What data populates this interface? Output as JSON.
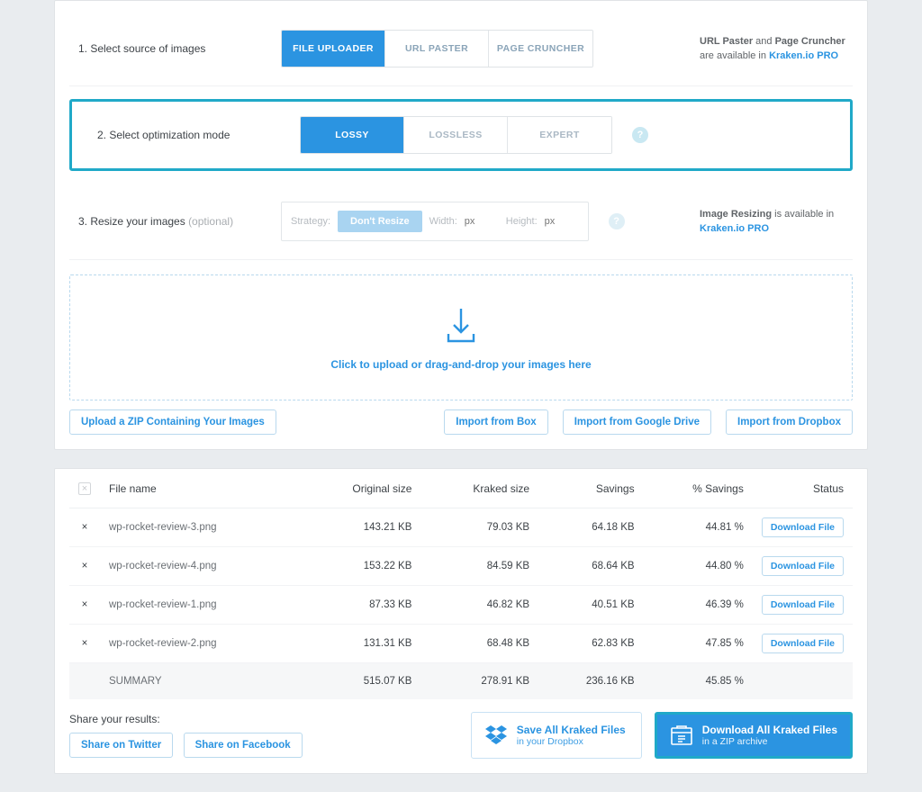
{
  "section1": {
    "label": "1. Select source of images",
    "tabs": [
      {
        "label": "FILE UPLOADER",
        "active": true
      },
      {
        "label": "URL PASTER",
        "active": false
      },
      {
        "label": "PAGE CRUNCHER",
        "active": false
      }
    ],
    "aside_prefix": "URL Paster",
    "aside_and": " and ",
    "aside_pc": "Page Cruncher",
    "aside_line2a": "are available in ",
    "aside_link": "Kraken.io PRO"
  },
  "section2": {
    "label": "2. Select optimization mode",
    "tabs": [
      {
        "label": "LOSSY",
        "active": true
      },
      {
        "label": "LOSSLESS",
        "active": false
      },
      {
        "label": "EXPERT",
        "active": false
      }
    ]
  },
  "section3": {
    "label_main": "3. Resize your images ",
    "label_optional": "(optional)",
    "strategy_label": "Strategy:",
    "strategy_value": "Don't Resize",
    "width_label": "Width:",
    "width_placeholder": "px",
    "height_label": "Height:",
    "height_placeholder": "px",
    "aside_bold": "Image Resizing",
    "aside_text": " is available in",
    "aside_link": "Kraken.io PRO"
  },
  "dropzone_text": "Click to upload or drag-and-drop your images here",
  "buttons": {
    "upload_zip": "Upload a ZIP Containing Your Images",
    "import_box": "Import from Box",
    "import_gdrive": "Import from Google Drive",
    "import_dropbox": "Import from Dropbox"
  },
  "table": {
    "headers": {
      "fname": "File name",
      "orig": "Original size",
      "kraked": "Kraked size",
      "savings": "Savings",
      "pct": "% Savings",
      "status": "Status"
    },
    "download_label": "Download File",
    "rows": [
      {
        "fname": "wp-rocket-review-3.png",
        "orig": "143.21 KB",
        "kraked": "79.03 KB",
        "savings": "64.18 KB",
        "pct": "44.81 %"
      },
      {
        "fname": "wp-rocket-review-4.png",
        "orig": "153.22 KB",
        "kraked": "84.59 KB",
        "savings": "68.64 KB",
        "pct": "44.80 %"
      },
      {
        "fname": "wp-rocket-review-1.png",
        "orig": "87.33 KB",
        "kraked": "46.82 KB",
        "savings": "40.51 KB",
        "pct": "46.39 %"
      },
      {
        "fname": "wp-rocket-review-2.png",
        "orig": "131.31 KB",
        "kraked": "68.48 KB",
        "savings": "62.83 KB",
        "pct": "47.85 %"
      }
    ],
    "summary": {
      "label": "SUMMARY",
      "orig": "515.07 KB",
      "kraked": "278.91 KB",
      "savings": "236.16 KB",
      "pct": "45.85 %"
    }
  },
  "share": {
    "label": "Share your results:",
    "twitter": "Share on Twitter",
    "facebook": "Share on Facebook"
  },
  "big_dropbox": {
    "t1": "Save All Kraked Files",
    "t2": "in your Dropbox"
  },
  "big_download": {
    "t1": "Download All Kraked Files",
    "t2": "in a ZIP archive"
  }
}
